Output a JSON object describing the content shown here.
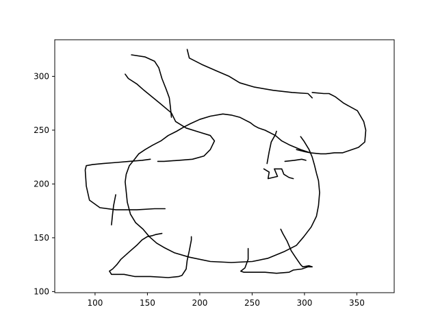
{
  "chart_data": {
    "type": "line",
    "title": "",
    "xlabel": "",
    "ylabel": "",
    "xlim": [
      62,
      385
    ],
    "ylim": [
      99,
      334
    ],
    "x_ticks": [
      100,
      150,
      200,
      250,
      300,
      350
    ],
    "y_ticks": [
      100,
      150,
      200,
      250,
      300
    ],
    "grid": false,
    "legend": "none",
    "line_color": "#000000",
    "series": [
      {
        "values": [
          [
            135,
            320
          ],
          [
            148,
            318
          ],
          [
            157,
            314
          ],
          [
            161,
            308
          ],
          [
            164,
            298
          ],
          [
            168,
            288
          ],
          [
            171,
            280
          ],
          [
            172,
            272
          ],
          [
            173,
            262
          ]
        ]
      },
      {
        "values": [
          [
            188,
            325
          ],
          [
            190,
            317
          ],
          [
            202,
            311
          ],
          [
            216,
            305
          ],
          [
            228,
            300
          ],
          [
            238,
            294
          ],
          [
            252,
            290
          ],
          [
            270,
            287
          ],
          [
            288,
            285
          ],
          [
            303,
            284
          ],
          [
            307,
            280
          ]
        ]
      },
      {
        "values": [
          [
            129,
            302
          ],
          [
            132,
            298
          ],
          [
            140,
            293
          ],
          [
            147,
            287
          ],
          [
            162,
            275
          ],
          [
            173,
            266
          ],
          [
            177,
            258
          ],
          [
            187,
            252
          ],
          [
            200,
            248
          ],
          [
            210,
            245
          ],
          [
            214,
            240
          ],
          [
            210,
            232
          ],
          [
            204,
            226
          ],
          [
            193,
            223
          ],
          [
            180,
            222
          ],
          [
            166,
            221
          ],
          [
            160,
            221
          ]
        ]
      },
      {
        "values": [
          [
            153,
            223
          ],
          [
            145,
            222
          ],
          [
            133,
            221
          ],
          [
            121,
            220
          ],
          [
            108,
            219
          ],
          [
            98,
            218
          ],
          [
            92,
            217
          ],
          [
            91,
            213
          ],
          [
            92,
            198
          ],
          [
            95,
            185
          ],
          [
            105,
            178
          ],
          [
            120,
            176
          ],
          [
            140,
            176
          ],
          [
            157,
            177
          ],
          [
            167,
            177
          ]
        ]
      },
      {
        "values": [
          [
            307,
            285
          ],
          [
            318,
            284
          ],
          [
            323,
            284
          ],
          [
            329,
            281
          ],
          [
            337,
            275
          ],
          [
            350,
            268
          ],
          [
            356,
            258
          ],
          [
            358,
            250
          ],
          [
            357,
            239
          ],
          [
            351,
            234
          ],
          [
            342,
            231
          ],
          [
            336,
            229
          ],
          [
            328,
            229
          ],
          [
            320,
            228
          ],
          [
            315,
            228
          ],
          [
            305,
            229
          ],
          [
            300,
            230
          ],
          [
            292,
            232
          ]
        ]
      },
      {
        "values": [
          [
            305,
            229
          ],
          [
            296,
            232
          ],
          [
            286,
            236
          ],
          [
            278,
            240
          ],
          [
            272,
            245
          ],
          [
            262,
            250
          ],
          [
            256,
            252
          ],
          [
            252,
            254
          ],
          [
            248,
            257
          ],
          [
            244,
            259
          ],
          [
            238,
            262
          ],
          [
            230,
            264
          ],
          [
            222,
            265
          ],
          [
            210,
            263
          ],
          [
            200,
            260
          ],
          [
            191,
            256
          ],
          [
            185,
            253
          ],
          [
            178,
            249
          ],
          [
            170,
            245
          ],
          [
            163,
            240
          ],
          [
            155,
            236
          ],
          [
            148,
            232
          ],
          [
            142,
            228
          ]
        ]
      },
      {
        "values": [
          [
            142,
            228
          ],
          [
            138,
            223
          ],
          [
            133,
            217
          ],
          [
            130,
            209
          ],
          [
            129,
            202
          ],
          [
            130,
            193
          ],
          [
            131,
            183
          ],
          [
            134,
            172
          ],
          [
            139,
            164
          ],
          [
            146,
            158
          ],
          [
            152,
            151
          ],
          [
            159,
            145
          ],
          [
            166,
            141
          ],
          [
            176,
            136
          ],
          [
            190,
            132
          ],
          [
            210,
            128
          ],
          [
            230,
            127
          ],
          [
            250,
            128
          ],
          [
            265,
            131
          ],
          [
            280,
            137
          ],
          [
            292,
            143
          ],
          [
            299,
            151
          ],
          [
            306,
            160
          ],
          [
            311,
            170
          ],
          [
            313,
            180
          ],
          [
            314,
            192
          ],
          [
            313,
            203
          ],
          [
            311,
            210
          ],
          [
            309,
            218
          ],
          [
            307,
            225
          ],
          [
            304,
            232
          ],
          [
            299,
            240
          ],
          [
            296,
            244
          ]
        ]
      },
      {
        "values": [
          [
            120,
            190
          ],
          [
            118,
            180
          ],
          [
            117,
            172
          ],
          [
            116,
            162
          ]
        ]
      },
      {
        "values": [
          [
            164,
            154
          ],
          [
            158,
            153
          ],
          [
            155,
            152
          ],
          [
            150,
            151
          ],
          [
            145,
            148
          ],
          [
            140,
            143
          ],
          [
            133,
            137
          ],
          [
            125,
            130
          ],
          [
            121,
            125
          ],
          [
            117,
            121
          ],
          [
            114,
            119
          ],
          [
            116,
            116
          ],
          [
            128,
            116
          ],
          [
            138,
            114
          ],
          [
            153,
            114
          ],
          [
            170,
            113
          ],
          [
            180,
            114
          ],
          [
            183,
            115
          ],
          [
            187,
            121
          ],
          [
            188,
            129
          ],
          [
            190,
            138
          ],
          [
            192,
            148
          ],
          [
            192,
            151
          ]
        ]
      },
      {
        "values": [
          [
            246,
            140
          ],
          [
            246,
            130
          ],
          [
            243,
            122
          ],
          [
            239,
            119
          ],
          [
            242,
            118
          ],
          [
            262,
            118
          ],
          [
            273,
            117
          ],
          [
            285,
            118
          ],
          [
            289,
            120
          ],
          [
            297,
            121
          ],
          [
            303,
            123
          ],
          [
            307,
            123
          ],
          [
            304,
            124
          ],
          [
            298,
            123
          ],
          [
            296,
            125
          ],
          [
            291,
            132
          ],
          [
            287,
            138
          ],
          [
            283,
            147
          ],
          [
            279,
            154
          ],
          [
            277,
            158
          ]
        ]
      },
      {
        "values": [
          [
            261,
            214
          ],
          [
            266,
            211
          ],
          [
            265,
            205
          ],
          [
            274,
            207
          ],
          [
            271,
            214
          ],
          [
            278,
            214
          ],
          [
            280,
            209
          ],
          [
            285,
            206
          ],
          [
            289,
            205
          ]
        ]
      },
      {
        "values": [
          [
            264,
            219
          ],
          [
            266,
            230
          ],
          [
            268,
            239
          ],
          [
            272,
            246
          ],
          [
            273,
            249
          ]
        ]
      },
      {
        "values": [
          [
            281,
            221
          ],
          [
            290,
            222
          ],
          [
            297,
            223
          ],
          [
            301,
            222
          ]
        ]
      }
    ]
  },
  "texts": {
    "x_tick_labels": [
      "100",
      "150",
      "200",
      "250",
      "300",
      "350"
    ],
    "y_tick_labels": [
      "100",
      "150",
      "200",
      "250",
      "300"
    ]
  }
}
